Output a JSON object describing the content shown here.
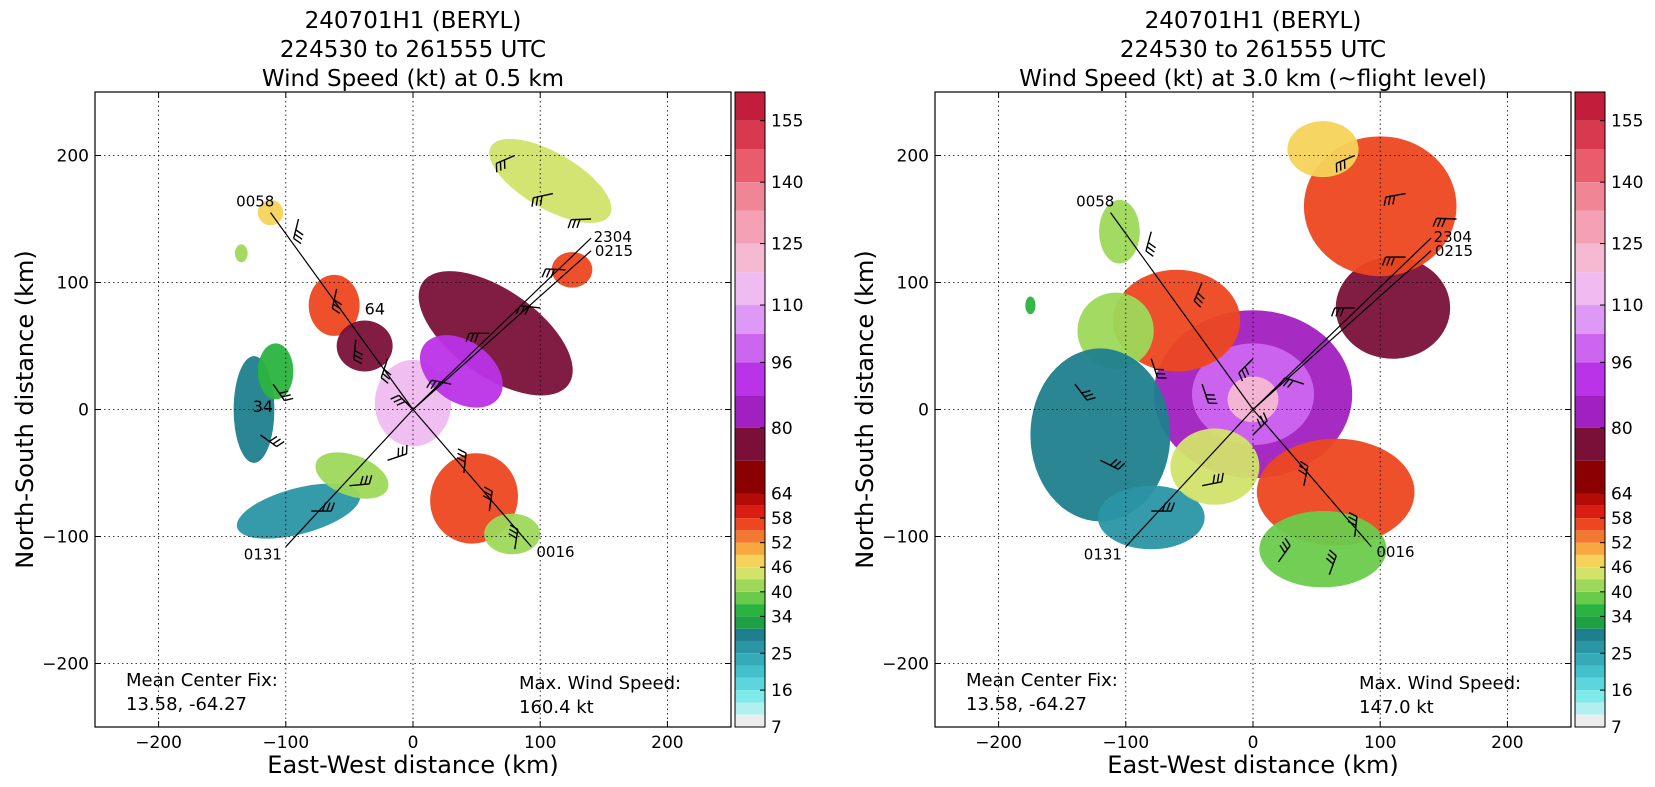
{
  "chart_data": [
    {
      "type": "heatmap",
      "title_lines": [
        "240701H1 (BERYL)",
        "224530 to 261555 UTC",
        "Wind Speed (kt) at 0.5 km"
      ],
      "xlabel": "East-West distance (km)",
      "ylabel": "North-South distance (km)",
      "xlim": [
        -250,
        250
      ],
      "ylim": [
        -250,
        250
      ],
      "xticks": [
        -200,
        -100,
        0,
        100,
        200
      ],
      "yticks": [
        -200,
        -100,
        0,
        100,
        200
      ],
      "tick_labels_x": [
        "−200",
        "−100",
        "0",
        "100",
        "200"
      ],
      "tick_labels_y": [
        "−200",
        "−100",
        "0",
        "100",
        "200"
      ],
      "grid": true,
      "mean_center_fix_label": "Mean Center Fix:",
      "mean_center_fix_value": "13.58, -64.27",
      "max_wind_label": "Max. Wind Speed:",
      "max_wind_value": "160.4 kt",
      "flight_tracks": [
        {
          "label": "0058",
          "start": [
            -112,
            155
          ],
          "end": [
            0,
            0
          ]
        },
        {
          "label": "0131",
          "start": [
            -100,
            -108
          ],
          "end": [
            0,
            0
          ]
        },
        {
          "label": "0016",
          "start": [
            93,
            -108
          ],
          "end": [
            0,
            0
          ]
        },
        {
          "label": "2304",
          "start": [
            140,
            135
          ],
          "end": [
            0,
            0
          ]
        },
        {
          "label": "0215",
          "start": [
            140,
            125
          ],
          "end": [
            0,
            0
          ]
        }
      ],
      "track_labels": [
        {
          "text": "0058",
          "x": -124,
          "y": 160
        },
        {
          "text": "0131",
          "x": -118,
          "y": -118
        },
        {
          "text": "0016",
          "x": 112,
          "y": -116
        },
        {
          "text": "2304",
          "x": 157,
          "y": 132
        },
        {
          "text": "0215",
          "x": 158,
          "y": 121
        }
      ],
      "contour_labels": [
        {
          "text": "34",
          "x": -118,
          "y": -2
        },
        {
          "text": "64",
          "x": -30,
          "y": 75
        }
      ],
      "wind_regions": [
        {
          "x": 0,
          "y": 5,
          "rx": 30,
          "ry": 34,
          "speed": 115
        },
        {
          "x": 65,
          "y": 60,
          "rx": 70,
          "ry": 34,
          "speed": 75,
          "rot": -35
        },
        {
          "x": 38,
          "y": 30,
          "rx": 36,
          "ry": 24,
          "speed": 88,
          "rot": -35
        },
        {
          "x": -62,
          "y": 82,
          "rx": 20,
          "ry": 24,
          "speed": 57
        },
        {
          "x": -38,
          "y": 50,
          "rx": 22,
          "ry": 20,
          "speed": 78
        },
        {
          "x": 108,
          "y": 180,
          "rx": 54,
          "ry": 22,
          "speed": 44,
          "rot": -30
        },
        {
          "x": 125,
          "y": 110,
          "rx": 16,
          "ry": 14,
          "speed": 57
        },
        {
          "x": 48,
          "y": -70,
          "rx": 34,
          "ry": 36,
          "speed": 56,
          "rot": -30
        },
        {
          "x": 78,
          "y": -98,
          "rx": 22,
          "ry": 16,
          "speed": 40
        },
        {
          "x": -90,
          "y": -80,
          "rx": 50,
          "ry": 18,
          "speed": 27,
          "rot": 15
        },
        {
          "x": -48,
          "y": -52,
          "rx": 30,
          "ry": 16,
          "speed": 40,
          "rot": -20
        },
        {
          "x": -125,
          "y": 0,
          "rx": 16,
          "ry": 42,
          "speed": 28
        },
        {
          "x": -108,
          "y": 30,
          "rx": 14,
          "ry": 22,
          "speed": 36
        },
        {
          "x": -112,
          "y": 155,
          "rx": 10,
          "ry": 10,
          "speed": 46
        },
        {
          "x": -135,
          "y": 123,
          "rx": 5,
          "ry": 7,
          "speed": 42
        }
      ],
      "barbs": [
        {
          "x": -90,
          "y": 150
        },
        {
          "x": -60,
          "y": 95
        },
        {
          "x": -45,
          "y": 55
        },
        {
          "x": -20,
          "y": 40
        },
        {
          "x": 0,
          "y": 0
        },
        {
          "x": 30,
          "y": 20
        },
        {
          "x": 60,
          "y": 60
        },
        {
          "x": 100,
          "y": 80
        },
        {
          "x": 120,
          "y": 110
        },
        {
          "x": 80,
          "y": 200
        },
        {
          "x": 110,
          "y": 170
        },
        {
          "x": 140,
          "y": 150
        },
        {
          "x": 40,
          "y": -50
        },
        {
          "x": 60,
          "y": -80
        },
        {
          "x": 80,
          "y": -110
        },
        {
          "x": -20,
          "y": -40
        },
        {
          "x": -50,
          "y": -60
        },
        {
          "x": -80,
          "y": -80
        },
        {
          "x": -110,
          "y": 20
        },
        {
          "x": -120,
          "y": -20
        }
      ],
      "colorbar": {
        "levels": [
          7,
          10,
          13,
          16,
          19,
          22,
          25,
          28,
          31,
          34,
          37,
          40,
          43,
          46,
          49,
          52,
          55,
          58,
          61,
          64,
          72,
          80,
          88,
          96,
          103,
          110,
          118,
          125,
          133,
          140,
          148,
          155,
          162
        ],
        "colors": [
          "#ececec",
          "#b2f0f0",
          "#7feaea",
          "#5cd6dc",
          "#42c1cc",
          "#36abb8",
          "#2a95a4",
          "#207f8e",
          "#1ea046",
          "#2bb33f",
          "#6acb4b",
          "#9ed85a",
          "#d2e36a",
          "#f5d35a",
          "#f7a93f",
          "#f27a30",
          "#ec4720",
          "#d91d12",
          "#b40a08",
          "#8b0000",
          "#7a1038",
          "#a020c0",
          "#bb33e8",
          "#cc66f0",
          "#dd99f5",
          "#efbbf0",
          "#f6b9d2",
          "#f4a1b5",
          "#f08595",
          "#e85c6c",
          "#d8394f",
          "#c21d3a",
          "#9a0f33"
        ],
        "tick_labels": [
          "7",
          "16",
          "25",
          "34",
          "40",
          "46",
          "52",
          "58",
          "64",
          "80",
          "96",
          "110",
          "125",
          "140",
          "155"
        ],
        "tick_values": [
          7,
          16,
          25,
          34,
          40,
          46,
          52,
          58,
          64,
          80,
          96,
          110,
          125,
          140,
          155
        ]
      }
    },
    {
      "type": "heatmap",
      "title_lines": [
        "240701H1 (BERYL)",
        "224530 to 261555 UTC",
        "Wind Speed (kt) at 3.0 km (~flight level)"
      ],
      "xlabel": "East-West distance (km)",
      "ylabel": "North-South distance (km)",
      "xlim": [
        -250,
        250
      ],
      "ylim": [
        -250,
        250
      ],
      "xticks": [
        -200,
        -100,
        0,
        100,
        200
      ],
      "yticks": [
        -200,
        -100,
        0,
        100,
        200
      ],
      "tick_labels_x": [
        "−200",
        "−100",
        "0",
        "100",
        "200"
      ],
      "tick_labels_y": [
        "−200",
        "−100",
        "0",
        "100",
        "200"
      ],
      "grid": true,
      "mean_center_fix_label": "Mean Center Fix:",
      "mean_center_fix_value": "13.58, -64.27",
      "max_wind_label": "Max. Wind Speed:",
      "max_wind_value": "147.0 kt",
      "flight_tracks": [
        {
          "label": "0058",
          "start": [
            -112,
            155
          ],
          "end": [
            0,
            0
          ]
        },
        {
          "label": "0131",
          "start": [
            -100,
            -108
          ],
          "end": [
            0,
            0
          ]
        },
        {
          "label": "0016",
          "start": [
            93,
            -108
          ],
          "end": [
            0,
            0
          ]
        },
        {
          "label": "2304",
          "start": [
            140,
            135
          ],
          "end": [
            0,
            0
          ]
        },
        {
          "label": "0215",
          "start": [
            140,
            125
          ],
          "end": [
            0,
            0
          ]
        }
      ],
      "track_labels": [
        {
          "text": "0058",
          "x": -124,
          "y": 160
        },
        {
          "text": "0131",
          "x": -118,
          "y": -118
        },
        {
          "text": "0016",
          "x": 112,
          "y": -116
        },
        {
          "text": "2304",
          "x": 157,
          "y": 132
        },
        {
          "text": "0215",
          "x": 158,
          "y": 121
        }
      ],
      "contour_labels": [],
      "wind_regions": [
        {
          "x": 0,
          "y": 12,
          "rx": 78,
          "ry": 66,
          "speed": 85
        },
        {
          "x": 0,
          "y": 12,
          "rx": 48,
          "ry": 40,
          "speed": 100
        },
        {
          "x": 0,
          "y": 8,
          "rx": 20,
          "ry": 18,
          "speed": 118
        },
        {
          "x": 110,
          "y": 80,
          "rx": 45,
          "ry": 40,
          "speed": 72
        },
        {
          "x": 100,
          "y": 160,
          "rx": 60,
          "ry": 55,
          "speed": 55
        },
        {
          "x": 55,
          "y": 205,
          "rx": 28,
          "ry": 22,
          "speed": 46
        },
        {
          "x": -60,
          "y": 70,
          "rx": 50,
          "ry": 40,
          "speed": 55
        },
        {
          "x": -108,
          "y": 62,
          "rx": 30,
          "ry": 30,
          "speed": 42
        },
        {
          "x": -120,
          "y": -20,
          "rx": 55,
          "ry": 68,
          "speed": 28
        },
        {
          "x": -80,
          "y": -85,
          "rx": 42,
          "ry": 25,
          "speed": 26
        },
        {
          "x": -30,
          "y": -45,
          "rx": 35,
          "ry": 30,
          "speed": 45
        },
        {
          "x": 65,
          "y": -65,
          "rx": 62,
          "ry": 42,
          "speed": 55
        },
        {
          "x": 55,
          "y": -110,
          "rx": 50,
          "ry": 30,
          "speed": 38
        },
        {
          "x": -105,
          "y": 140,
          "rx": 16,
          "ry": 25,
          "speed": 40
        },
        {
          "x": -175,
          "y": 82,
          "rx": 4,
          "ry": 7,
          "speed": 36
        }
      ],
      "barbs": [
        {
          "x": -80,
          "y": 140
        },
        {
          "x": -40,
          "y": 100
        },
        {
          "x": -80,
          "y": 40
        },
        {
          "x": -40,
          "y": 20
        },
        {
          "x": 0,
          "y": 40
        },
        {
          "x": 40,
          "y": 20
        },
        {
          "x": 0,
          "y": -20
        },
        {
          "x": 80,
          "y": 80
        },
        {
          "x": 120,
          "y": 120
        },
        {
          "x": 80,
          "y": 200
        },
        {
          "x": 120,
          "y": 170
        },
        {
          "x": 160,
          "y": 150
        },
        {
          "x": 40,
          "y": -60
        },
        {
          "x": 80,
          "y": -100
        },
        {
          "x": 60,
          "y": -130
        },
        {
          "x": -40,
          "y": -60
        },
        {
          "x": -80,
          "y": -80
        },
        {
          "x": -120,
          "y": -40
        },
        {
          "x": -140,
          "y": 20
        },
        {
          "x": 20,
          "y": -120
        }
      ],
      "colorbar": {
        "levels": [
          7,
          10,
          13,
          16,
          19,
          22,
          25,
          28,
          31,
          34,
          37,
          40,
          43,
          46,
          49,
          52,
          55,
          58,
          61,
          64,
          72,
          80,
          88,
          96,
          103,
          110,
          118,
          125,
          133,
          140,
          148,
          155,
          162
        ],
        "colors": [
          "#ececec",
          "#b2f0f0",
          "#7feaea",
          "#5cd6dc",
          "#42c1cc",
          "#36abb8",
          "#2a95a4",
          "#207f8e",
          "#1ea046",
          "#2bb33f",
          "#6acb4b",
          "#9ed85a",
          "#d2e36a",
          "#f5d35a",
          "#f7a93f",
          "#f27a30",
          "#ec4720",
          "#d91d12",
          "#b40a08",
          "#8b0000",
          "#7a1038",
          "#a020c0",
          "#bb33e8",
          "#cc66f0",
          "#dd99f5",
          "#efbbf0",
          "#f6b9d2",
          "#f4a1b5",
          "#f08595",
          "#e85c6c",
          "#d8394f",
          "#c21d3a",
          "#9a0f33"
        ],
        "tick_labels": [
          "7",
          "16",
          "25",
          "34",
          "40",
          "46",
          "52",
          "58",
          "64",
          "80",
          "96",
          "110",
          "125",
          "140",
          "155"
        ],
        "tick_values": [
          7,
          16,
          25,
          34,
          40,
          46,
          52,
          58,
          64,
          80,
          96,
          110,
          125,
          140,
          155
        ]
      }
    }
  ]
}
